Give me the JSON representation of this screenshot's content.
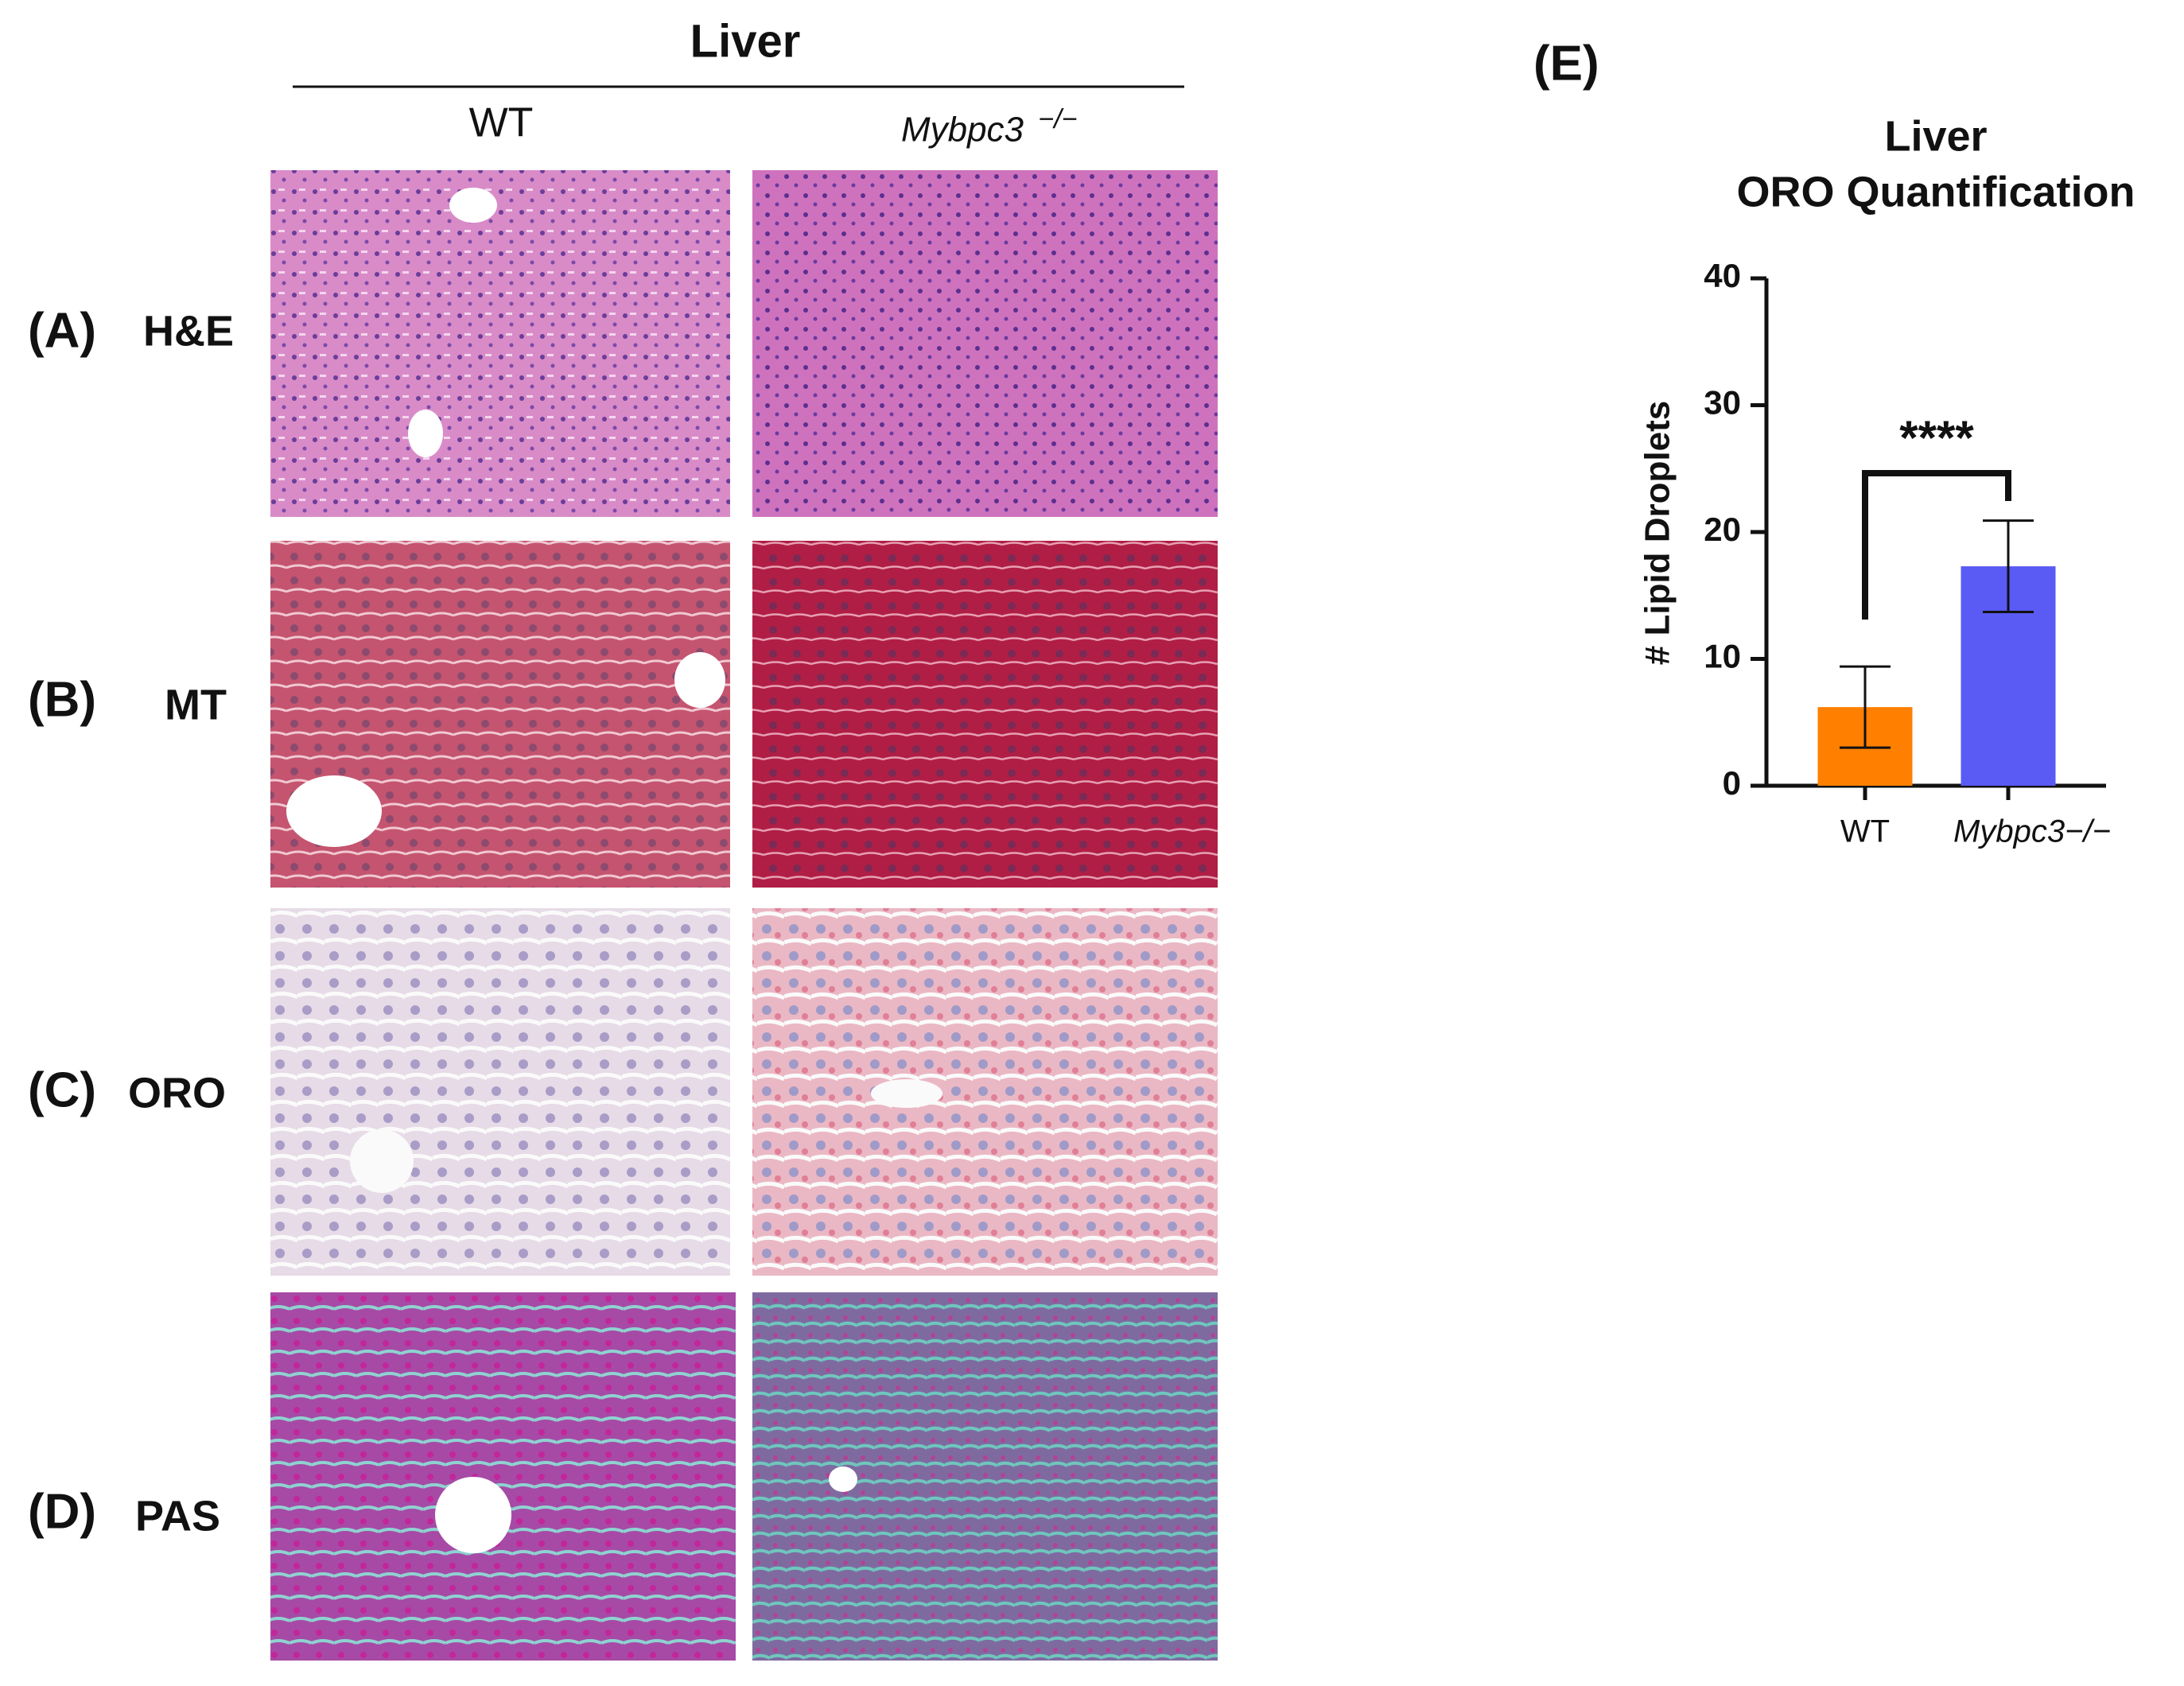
{
  "figure": {
    "title": "Liver",
    "columns": [
      "WT",
      "Mybpc3",
      "−/−"
    ],
    "rows": [
      {
        "panel": "(A)",
        "stain": "H&E"
      },
      {
        "panel": "(B)",
        "stain": "MT"
      },
      {
        "panel": "(C)",
        "stain": "ORO"
      },
      {
        "panel": "(D)",
        "stain": "PAS"
      }
    ],
    "chart_panel": "(E)"
  },
  "chart_data": {
    "type": "bar",
    "title": "Liver",
    "subtitle": "ORO Quantification",
    "y_label": "# Lipid Droplets",
    "categories": [
      "WT",
      "Mybpc3−/−"
    ],
    "values": [
      6.2,
      17.3
    ],
    "errors": [
      3.2,
      3.6
    ],
    "colors": [
      "#ff8000",
      "#5a5af5"
    ],
    "significance": "****",
    "ylim": [
      0,
      40
    ],
    "yticks": [
      0,
      10,
      20,
      30,
      40
    ]
  }
}
